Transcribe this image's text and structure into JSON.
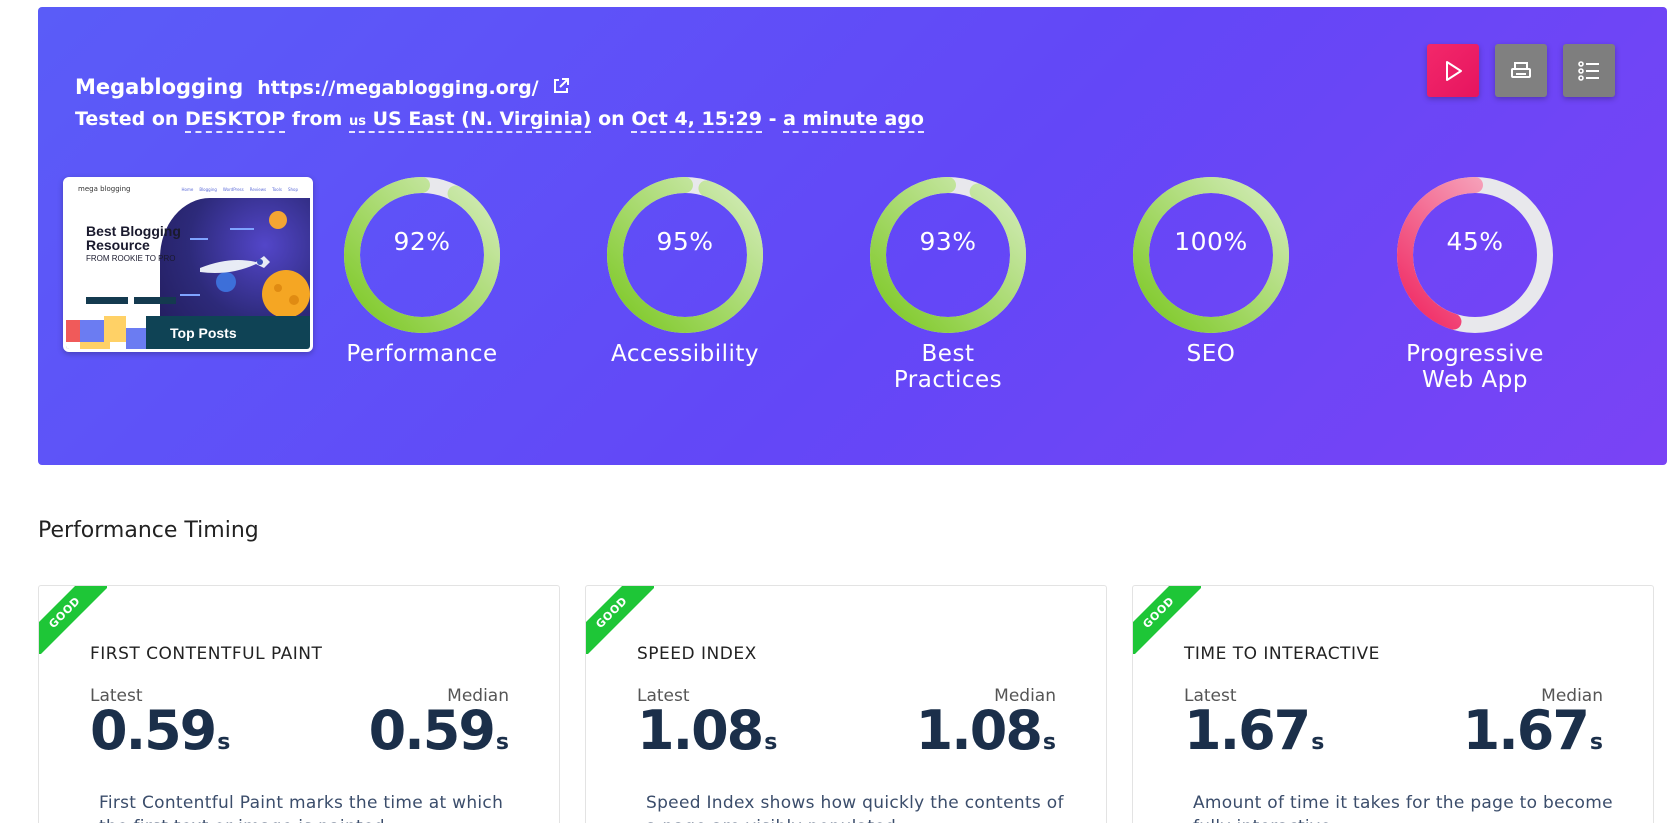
{
  "header": {
    "site_name": "Megablogging",
    "site_url": "https://megablogging.org/",
    "tested_on_prefix": "Tested on",
    "device": "DESKTOP",
    "from_word": "from",
    "location_flag": "us",
    "location": "US East (N. Virginia)",
    "on_word": "on",
    "date": "Oct 4, 15:29",
    "separator": "-",
    "relative_time": "a minute ago"
  },
  "toolbar": {
    "play_icon": "play-icon",
    "print_icon": "print-icon",
    "list_icon": "list-icon",
    "play_color": "#ee1d63",
    "gray_color": "#808080"
  },
  "thumbnail": {
    "logo_text": "mega blogging",
    "headline": "Best Blogging Resource",
    "subhead": "FROM ROOKIE TO PRO",
    "footer_text": "Top Posts"
  },
  "scores": [
    {
      "label": "Performance",
      "value": 92,
      "display": "92%",
      "color": "#7cc823"
    },
    {
      "label": "Accessibility",
      "value": 95,
      "display": "95%",
      "color": "#7cc823"
    },
    {
      "label": "Best Practices",
      "value": 93,
      "display": "93%",
      "color": "#7cc823"
    },
    {
      "label": "SEO",
      "value": 100,
      "display": "100%",
      "color": "#7cc823"
    },
    {
      "label": "Progressive Web App",
      "value": 45,
      "display": "45%",
      "color": "#f0245f"
    }
  ],
  "section": {
    "title": "Performance Timing"
  },
  "cards": [
    {
      "badge": "GOOD",
      "title": "FIRST CONTENTFUL PAINT",
      "latest_label": "Latest",
      "median_label": "Median",
      "latest": "0.59",
      "median": "0.59",
      "unit": "s",
      "description": "First Contentful Paint marks the time at which the first text or image is painted."
    },
    {
      "badge": "GOOD",
      "title": "SPEED INDEX",
      "latest_label": "Latest",
      "median_label": "Median",
      "latest": "1.08",
      "median": "1.08",
      "unit": "s",
      "description": "Speed Index shows how quickly the contents of a page are visibly populated."
    },
    {
      "badge": "GOOD",
      "title": "TIME TO INTERACTIVE",
      "latest_label": "Latest",
      "median_label": "Median",
      "latest": "1.67",
      "median": "1.67",
      "unit": "s",
      "description": "Amount of time it takes for the page to become fully interactive."
    }
  ]
}
